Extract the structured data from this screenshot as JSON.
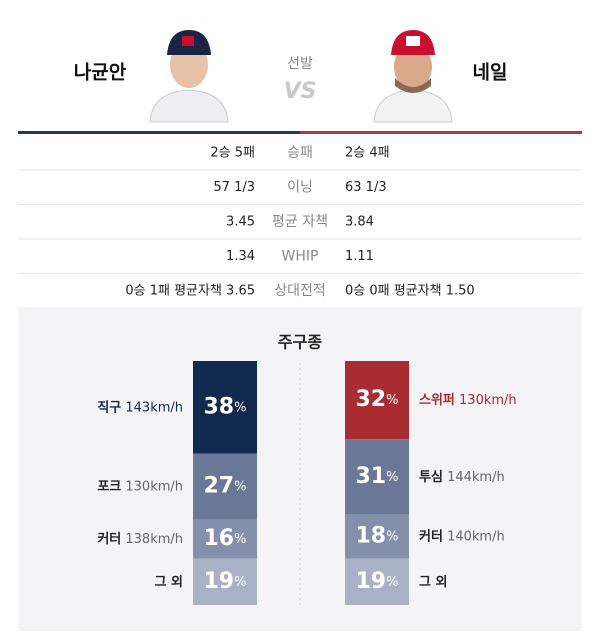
{
  "header": {
    "left_name": "나균안",
    "center_label": "선발",
    "vs": "VS",
    "right_name": "네일"
  },
  "stats": [
    {
      "left": "2승 5패",
      "label": "승패",
      "right": "2승 4패"
    },
    {
      "left": "57 1/3",
      "label": "이닝",
      "right": "63 1/3"
    },
    {
      "left": "3.45",
      "label": "평균 자책",
      "right": "3.84"
    },
    {
      "left": "1.34",
      "label": "WHIP",
      "right": "1.11"
    },
    {
      "left": "0승 1패 평균자책 3.65",
      "label": "상대전적",
      "right": "0승 0패 평균자책 1.50"
    }
  ],
  "pitches": {
    "title": "주구종",
    "left": [
      {
        "name": "직구",
        "speed": "143km/h",
        "value": 38,
        "value_label": "38%",
        "color": "#12294f"
      },
      {
        "name": "포크",
        "speed": "130km/h",
        "value": 27,
        "value_label": "27%",
        "color": "#6a7796"
      },
      {
        "name": "커터",
        "speed": "138km/h",
        "value": 16,
        "value_label": "16%",
        "color": "#8490ab"
      },
      {
        "name": "그 외",
        "value": 19,
        "value_label": "19%",
        "color": "#a8b1c5"
      }
    ],
    "right": [
      {
        "name": "스위퍼",
        "speed": "130km/h",
        "value": 32,
        "value_label": "32%",
        "color": "#a82c31"
      },
      {
        "name": "투심",
        "speed": "144km/h",
        "value": 31,
        "value_label": "31%",
        "color": "#6a7796"
      },
      {
        "name": "커터",
        "speed": "140km/h",
        "value": 18,
        "value_label": "18%",
        "color": "#8490ab"
      },
      {
        "name": "그 외",
        "value": 19,
        "value_label": "19%",
        "color": "#a8b1c5"
      }
    ]
  }
}
